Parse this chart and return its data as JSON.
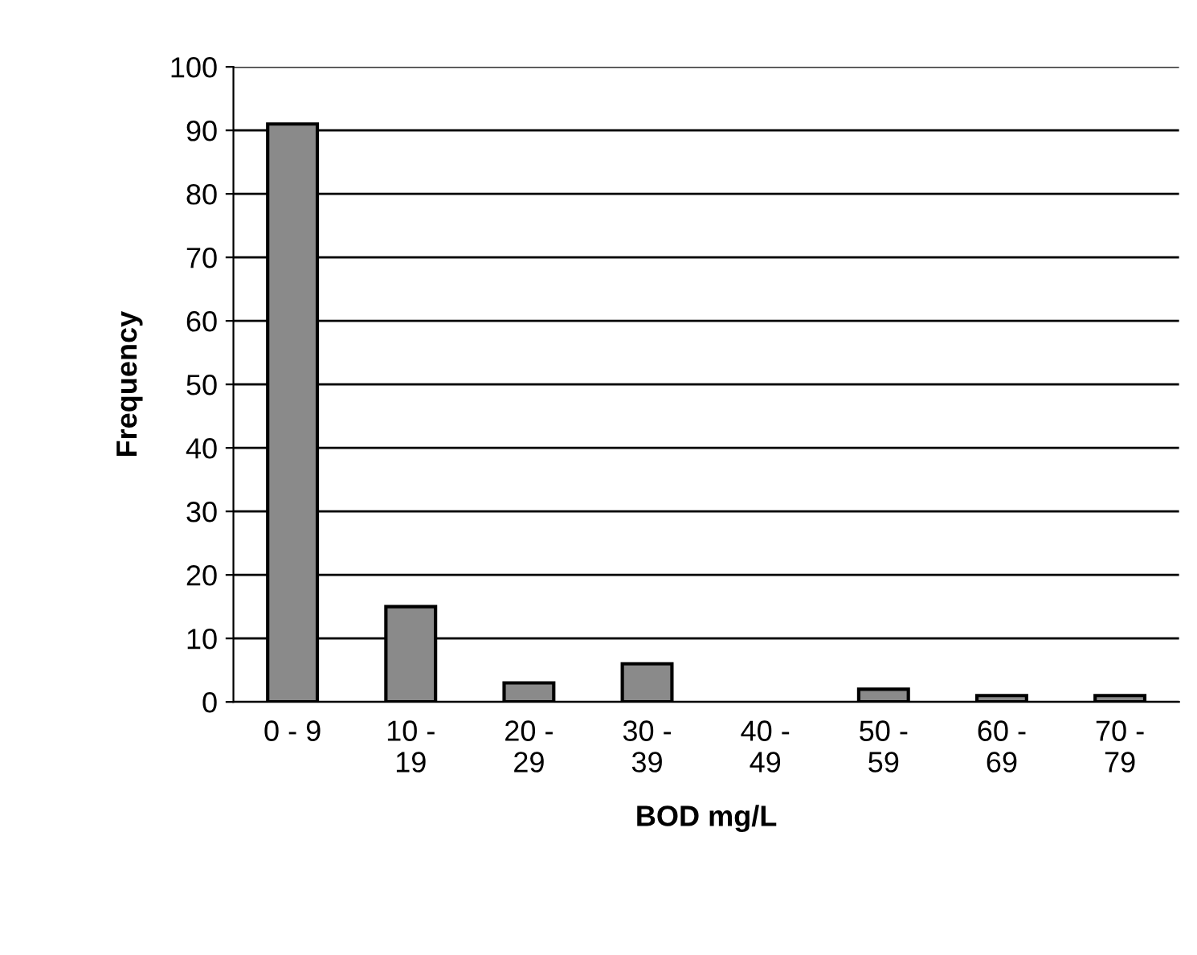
{
  "chart_data": {
    "type": "bar",
    "xlabel": "BOD mg/L",
    "ylabel": "Frequency",
    "categories": [
      "0 - 9",
      "10 -\n19",
      "20 -\n29",
      "30 -\n39",
      "40 -\n49",
      "50 -\n59",
      "60 -\n69",
      "70 -\n79"
    ],
    "values": [
      91,
      15,
      3,
      6,
      0,
      2,
      1,
      1
    ],
    "color": "#8a8a8a",
    "ylim": [
      0,
      100
    ],
    "yticks": [
      0,
      10,
      20,
      30,
      40,
      50,
      60,
      70,
      80,
      90,
      100
    ],
    "grid": "y",
    "legend": false
  }
}
